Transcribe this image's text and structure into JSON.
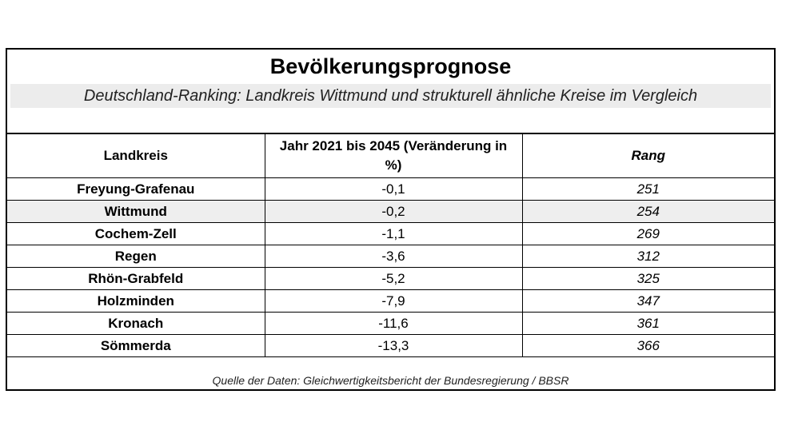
{
  "title": "Bevölkerungsprognose",
  "subtitle": "Deutschland-Ranking: Landkreis Wittmund und strukturell ähnliche Kreise im Vergleich",
  "table": {
    "headers": {
      "landkreis": "Landkreis",
      "change": "Jahr 2021 bis 2045 (Veränderung in %)",
      "rang": "Rang"
    },
    "rows": [
      {
        "name": "Freyung-Grafenau",
        "change": "-0,1",
        "rang": "251"
      },
      {
        "name": "Wittmund",
        "change": "-0,2",
        "rang": "254"
      },
      {
        "name": "Cochem-Zell",
        "change": "-1,1",
        "rang": "269"
      },
      {
        "name": "Regen",
        "change": "-3,6",
        "rang": "312"
      },
      {
        "name": "Rhön-Grabfeld",
        "change": "-5,2",
        "rang": "325"
      },
      {
        "name": "Holzminden",
        "change": "-7,9",
        "rang": "347"
      },
      {
        "name": "Kronach",
        "change": "-11,6",
        "rang": "361"
      },
      {
        "name": "Sömmerda",
        "change": "-13,3",
        "rang": "366"
      }
    ]
  },
  "source": "Quelle der Daten: Gleichwertigkeitsbericht der Bundesregierung / BBSR"
}
